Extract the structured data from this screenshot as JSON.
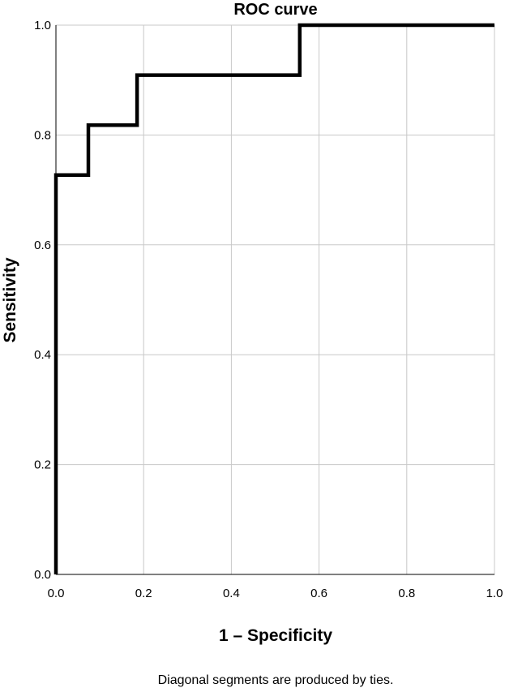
{
  "chart_data": {
    "type": "line",
    "title": "ROC curve",
    "xlabel": "1 – Specificity",
    "ylabel": "Sensitivity",
    "xlim": [
      0,
      1
    ],
    "ylim": [
      0,
      1
    ],
    "x_ticks": [
      "0.0",
      "0.2",
      "0.4",
      "0.6",
      "0.8",
      "1.0"
    ],
    "y_ticks": [
      "0.0",
      "0.2",
      "0.4",
      "0.6",
      "0.8",
      "1.0"
    ],
    "grid": true,
    "legend": "none",
    "series": [
      {
        "x": [
          0.0,
          0.0,
          0.074,
          0.074,
          0.185,
          0.185,
          0.556,
          0.556,
          1.0
        ],
        "y": [
          0.0,
          0.727,
          0.727,
          0.818,
          0.818,
          0.909,
          0.909,
          1.0,
          1.0
        ],
        "color": "#000000"
      }
    ],
    "footnote": "Diagonal segments are produced by ties."
  }
}
